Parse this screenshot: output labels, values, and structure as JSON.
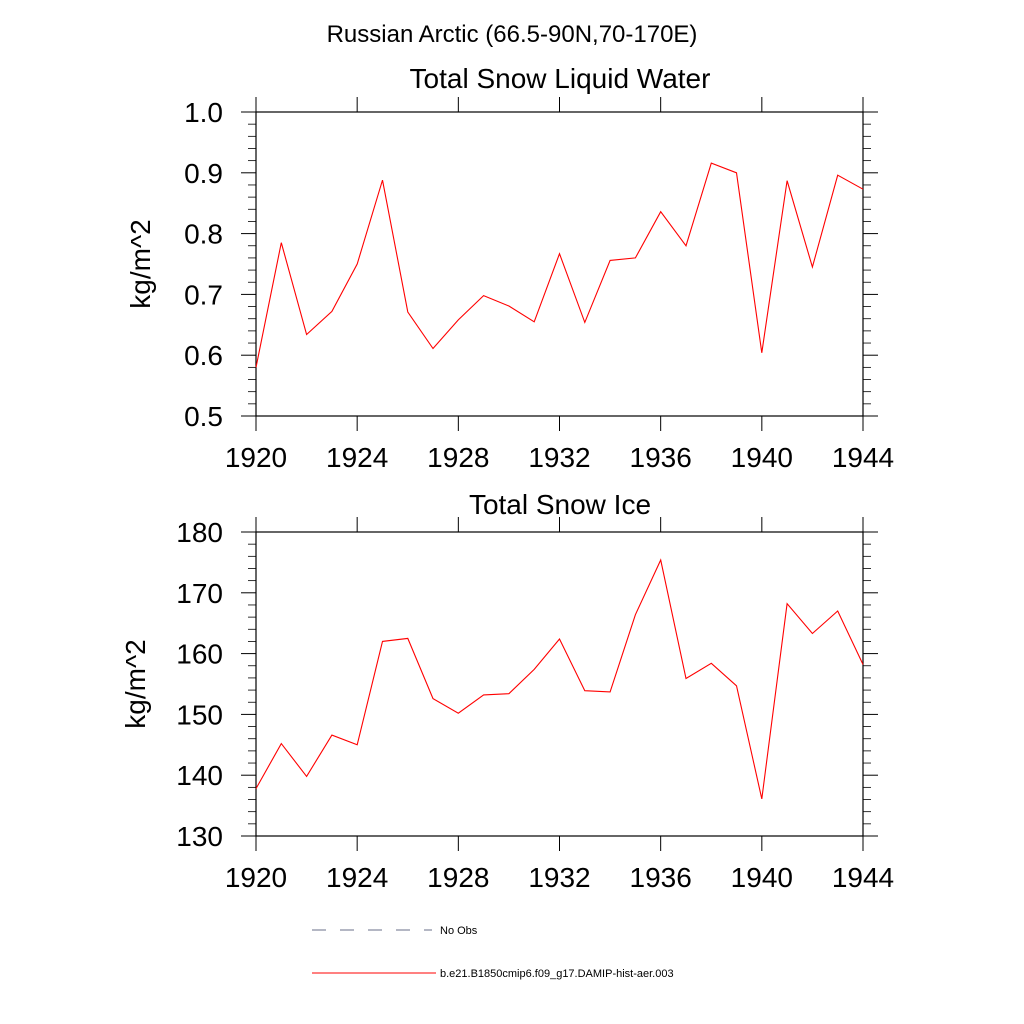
{
  "figure": {
    "main_title": "Russian Arctic (66.5-90N,70-170E)"
  },
  "legend": {
    "entries": [
      {
        "label": "No Obs",
        "style": "dashed",
        "color": "#6a6f8a"
      },
      {
        "label": "b.e21.B1850cmip6.f09_g17.DAMIP-hist-aer.003",
        "style": "solid",
        "color": "#ff0000"
      }
    ]
  },
  "chart_data": [
    {
      "type": "line",
      "title": "Total Snow Liquid Water",
      "ylabel": "kg/m^2",
      "xlabel": "",
      "xlim": [
        1920,
        1944
      ],
      "ylim": [
        0.5,
        1.0
      ],
      "x_ticks": [
        1920,
        1924,
        1928,
        1932,
        1936,
        1940,
        1944
      ],
      "y_ticks": [
        "0.5",
        "0.6",
        "0.7",
        "0.8",
        "0.9",
        "1.0"
      ],
      "series": [
        {
          "name": "b.e21.B1850cmip6.f09_g17.DAMIP-hist-aer.003",
          "color": "#ff0000",
          "x": [
            1920,
            1921,
            1922,
            1923,
            1924,
            1925,
            1926,
            1927,
            1928,
            1929,
            1930,
            1931,
            1932,
            1933,
            1934,
            1935,
            1936,
            1937,
            1938,
            1939,
            1940,
            1941,
            1942,
            1943,
            1944
          ],
          "values": [
            0.58,
            0.785,
            0.634,
            0.672,
            0.75,
            0.888,
            0.671,
            0.611,
            0.658,
            0.698,
            0.681,
            0.655,
            0.767,
            0.654,
            0.756,
            0.76,
            0.836,
            0.78,
            0.916,
            0.9,
            0.604,
            0.887,
            0.745,
            0.896,
            0.873
          ]
        }
      ]
    },
    {
      "type": "line",
      "title": "Total Snow Ice",
      "ylabel": "kg/m^2",
      "xlabel": "",
      "xlim": [
        1920,
        1944
      ],
      "ylim": [
        130,
        180
      ],
      "x_ticks": [
        1920,
        1924,
        1928,
        1932,
        1936,
        1940,
        1944
      ],
      "y_ticks": [
        "130",
        "140",
        "150",
        "160",
        "170",
        "180"
      ],
      "series": [
        {
          "name": "b.e21.B1850cmip6.f09_g17.DAMIP-hist-aer.003",
          "color": "#ff0000",
          "x": [
            1920,
            1921,
            1922,
            1923,
            1924,
            1925,
            1926,
            1927,
            1928,
            1929,
            1930,
            1931,
            1932,
            1933,
            1934,
            1935,
            1936,
            1937,
            1938,
            1939,
            1940,
            1941,
            1942,
            1943,
            1944
          ],
          "values": [
            137.8,
            145.2,
            139.8,
            146.6,
            145.0,
            162.0,
            162.5,
            152.6,
            150.2,
            153.2,
            153.4,
            157.4,
            162.4,
            153.9,
            153.7,
            166.4,
            175.4,
            155.9,
            158.4,
            154.7,
            136.1,
            168.2,
            163.3,
            167.0,
            158.2
          ]
        }
      ]
    }
  ]
}
